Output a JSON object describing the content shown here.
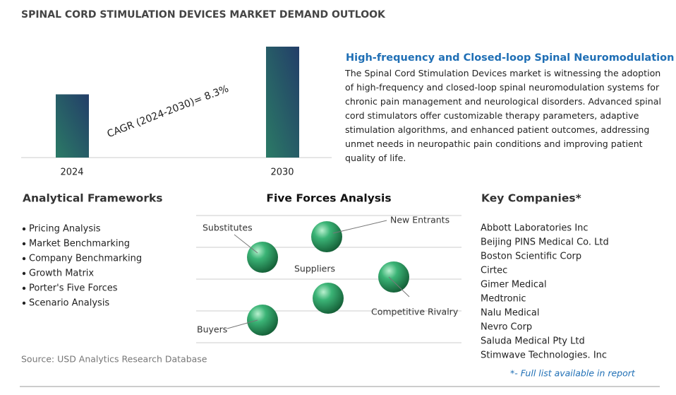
{
  "title": "SPINAL CORD STIMULATION DEVICES MARKET DEMAND OUTLOOK",
  "chart_data": {
    "type": "bar",
    "categories": [
      "2024",
      "2030"
    ],
    "values": [
      0.57,
      1
    ],
    "color": "#2b7a66",
    "annotation": "CAGR (2024-2030)=  8.3%"
  },
  "highlight": {
    "heading": "High-frequency and Closed-loop Spinal Neuromodulation",
    "body": "The Spinal Cord Stimulation Devices market is witnessing the adoption of high-frequency and closed-loop spinal neuromodulation systems for chronic pain management and neurological disorders. Advanced spinal cord stimulators offer customizable therapy parameters, adaptive stimulation algorithms, and enhanced patient outcomes, addressing unmet needs in neuropathic pain conditions and improving patient quality of life."
  },
  "frameworks": {
    "heading": "Analytical Frameworks",
    "items": [
      "Pricing Analysis",
      "Market Benchmarking",
      "Company Benchmarking",
      "Growth Matrix",
      "Porter's Five Forces",
      "Scenario Analysis"
    ]
  },
  "five_forces": {
    "heading": "Five Forces Analysis",
    "labels": [
      "New Entrants",
      "Substitutes",
      "Suppliers",
      "Competitive Rivalry",
      "Buyers"
    ]
  },
  "companies": {
    "heading": "Key Companies*",
    "items": [
      "Abbott Laboratories Inc",
      "Beijing PINS Medical Co. Ltd",
      "Boston Scientific Corp",
      "Cirtec",
      "Gimer Medical",
      "Medtronic",
      "Nalu Medical",
      "Nevro Corp",
      "Saluda Medical Pty Ltd",
      "Stimwave Technologies. Inc"
    ],
    "note": "*- Full list available in report"
  },
  "source": "Source: USD Analytics Research Database"
}
